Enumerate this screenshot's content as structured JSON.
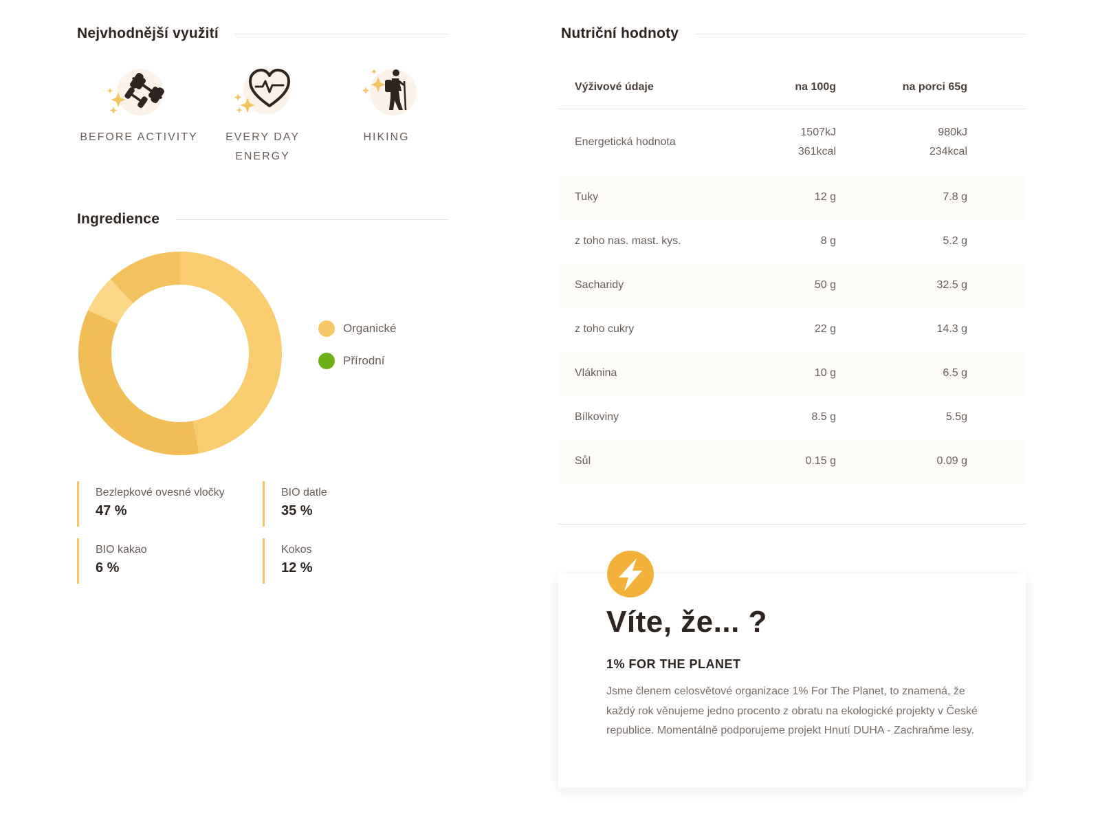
{
  "usage": {
    "title": "Nejvhodnější využití",
    "items": [
      {
        "icon": "dumbbell-icon",
        "label": "BEFORE ACTIVITY"
      },
      {
        "icon": "heart-pulse-icon",
        "label_line1": "EVERY DAY",
        "label_line2": "ENERGY"
      },
      {
        "icon": "hiker-icon",
        "label": "HIKING"
      }
    ]
  },
  "ingredients": {
    "title": "Ingredience",
    "legend": [
      {
        "label": "Organické",
        "color": "#f7c76a"
      },
      {
        "label": "Přírodní",
        "color": "#6bb015"
      }
    ],
    "items": [
      {
        "name": "Bezlepkové ovesné vločky",
        "pct": "47 %"
      },
      {
        "name": "BIO datle",
        "pct": "35 %"
      },
      {
        "name": "BIO kakao",
        "pct": "6 %"
      },
      {
        "name": "Kokos",
        "pct": "12 %"
      }
    ]
  },
  "chart_data": {
    "type": "pie",
    "categories": [
      "Bezlepkové ovesné vločky",
      "BIO datle",
      "BIO kakao",
      "Kokos"
    ],
    "values": [
      47,
      35,
      6,
      12
    ],
    "colors": [
      "#f9cc6f",
      "#f1bd56",
      "#fbd788",
      "#f3c15e"
    ]
  },
  "nutrition": {
    "title": "Nutriční hodnoty",
    "headers": [
      "Výživové údaje",
      "na 100g",
      "na porci 65g"
    ],
    "energy": {
      "label": "Energetická hodnota",
      "v100_kj": "1507kJ",
      "v100_kcal": "361kcal",
      "portion_kj": "980kJ",
      "portion_kcal": "234kcal"
    },
    "rows": [
      {
        "label": "Tuky",
        "v100": "12 g",
        "portion": "7.8 g"
      },
      {
        "label": "z toho nas. mast. kys.",
        "v100": "8 g",
        "portion": "5.2 g"
      },
      {
        "label": "Sacharidy",
        "v100": "50 g",
        "portion": "32.5 g"
      },
      {
        "label": "z toho cukry",
        "v100": "22 g",
        "portion": "14.3 g"
      },
      {
        "label": "Vláknina",
        "v100": "10 g",
        "portion": "6.5 g"
      },
      {
        "label": "Bílkoviny",
        "v100": "8.5 g",
        "portion": "5.5g"
      },
      {
        "label": "Sůl",
        "v100": "0.15 g",
        "portion": "0.09 g"
      }
    ]
  },
  "card": {
    "icon": "lightning-bolt-icon",
    "title": "Víte, že... ?",
    "subtitle": "1% FOR THE PLANET",
    "text": "Jsme členem celosvětové organizace 1% For The Planet, to znamená, že každý rok věnujeme jedno procento z obratu na ekologické projekty v České republice. Momentálně podporujeme projekt Hnutí DUHA - Zachraňme lesy."
  }
}
